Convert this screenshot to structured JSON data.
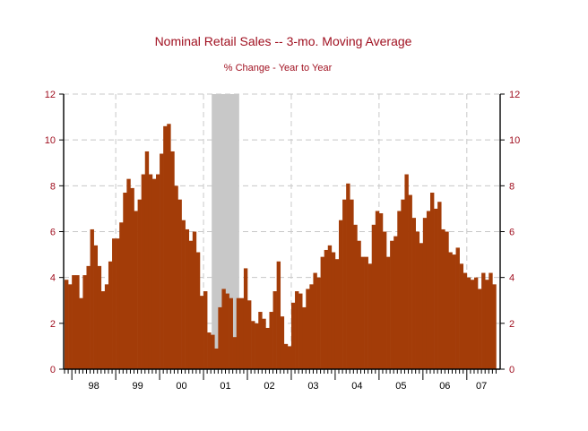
{
  "chart_data": {
    "type": "bar",
    "title": "Nominal Retail Sales -- 3-mo. Moving Average",
    "subtitle": "% Change - Year to Year",
    "xlabel": "",
    "ylabel": "",
    "ylim": [
      0,
      12
    ],
    "yticks": [
      0,
      2,
      4,
      6,
      8,
      10,
      12
    ],
    "grid": true,
    "colors": {
      "bar": "#a33c08",
      "recession": "#c8c8c8",
      "text": "#a01020",
      "grid": "#c8c8c8"
    },
    "year_labels": [
      "98",
      "99",
      "00",
      "01",
      "02",
      "03",
      "04",
      "05",
      "06",
      "07"
    ],
    "start": "1997-11",
    "recession": {
      "start": "2001-03",
      "end": "2001-11"
    },
    "values": [
      3.9,
      3.7,
      4.1,
      4.1,
      3.1,
      4.1,
      4.5,
      6.1,
      5.4,
      4.5,
      3.4,
      3.7,
      4.7,
      5.7,
      5.7,
      6.4,
      7.7,
      8.3,
      7.9,
      6.9,
      7.4,
      8.5,
      9.5,
      8.5,
      8.3,
      8.5,
      9.4,
      10.6,
      10.7,
      9.5,
      8.0,
      7.4,
      6.5,
      6.1,
      5.6,
      6.0,
      5.1,
      3.2,
      3.4,
      1.6,
      1.5,
      0.9,
      2.7,
      3.5,
      3.3,
      3.1,
      1.4,
      3.1,
      3.1,
      4.4,
      3.0,
      2.1,
      2.0,
      2.5,
      2.2,
      1.8,
      2.5,
      3.4,
      4.7,
      2.3,
      1.1,
      1.0,
      2.9,
      3.4,
      3.3,
      2.7,
      3.5,
      3.7,
      4.2,
      4.0,
      4.9,
      5.2,
      5.4,
      5.1,
      4.8,
      6.5,
      7.4,
      8.1,
      7.4,
      6.3,
      5.6,
      4.9,
      4.9,
      4.6,
      6.3,
      6.9,
      6.8,
      6.0,
      4.9,
      5.6,
      5.8,
      6.9,
      7.4,
      8.5,
      7.6,
      6.6,
      6.0,
      5.5,
      6.6,
      6.9,
      7.7,
      7.0,
      7.3,
      6.1,
      6.0,
      5.1,
      5.0,
      5.3,
      4.6,
      4.2,
      4.0,
      3.9,
      4.0,
      3.5,
      4.2,
      3.9,
      4.2,
      3.7
    ]
  }
}
